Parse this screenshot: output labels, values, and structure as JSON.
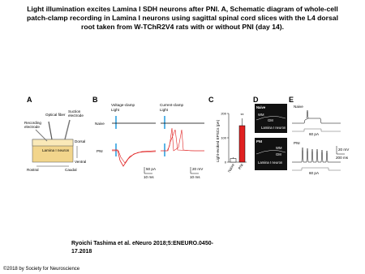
{
  "title": [
    "Light illumination excites Lamina I SDH neurons after PNI. A, Schematic diagram of whole-cell",
    "patch-clamp recording in Lamina I neurons using sagittal spinal cord slices with the L4 dorsal",
    "root taken from W-TChR2V4 rats with or without PNI (day 14)."
  ],
  "figure": {
    "panel_a": {
      "label": "A",
      "optical_fiber": "Optical fiber",
      "suction_electrode": [
        "Suction",
        "electrode"
      ],
      "recording_electrode": [
        "Recording",
        "electrode"
      ],
      "neuron": "Lamina I neuron",
      "dorsal": "Dorsal",
      "ventral": "Ventral",
      "rostral": "Rostral",
      "caudal": "Caudal"
    },
    "panel_b": {
      "label": "B",
      "voltage_clamp": "Voltage-clamp",
      "current_clamp": "Current-clamp",
      "light_1": "Light",
      "light_2": "Light",
      "naive": "Naive",
      "pni": "PNI",
      "scale_1_y": "50 pA",
      "scale_1_x": "10 ms",
      "scale_2_y": "20 mV",
      "scale_2_x": "10 ms"
    },
    "panel_c": {
      "label": "C",
      "y_label": "Light-evoked EPSCs (pA)",
      "categories": [
        "Naive",
        "PNI"
      ],
      "values": [
        15,
        150
      ],
      "errors": [
        5,
        30
      ],
      "ylim": [
        0,
        200
      ],
      "yticks": [
        0,
        100,
        200
      ],
      "significance": "**"
    },
    "panel_d": {
      "label": "D",
      "naive": "Naive",
      "pni": "PNI",
      "wm_1": "WM",
      "gm_1": "GM",
      "neuron_1": "Lamina I neuron",
      "wm_2": "WM",
      "gm_2": "GM",
      "neuron_2": "Lamina I neuron"
    },
    "panel_e": {
      "label": "E",
      "naive": "Naive",
      "pni": "PNI",
      "stim_1": "60 pA",
      "stim_2": "60 pA",
      "scale_y": "20 mV",
      "scale_x": "200 ms"
    }
  },
  "citation": [
    "Ryoichi Tashima et al. eNeuro 2018;5:ENEURO.0450-",
    "17.2018"
  ],
  "copyright": "©2018 by Society for Neuroscience"
}
